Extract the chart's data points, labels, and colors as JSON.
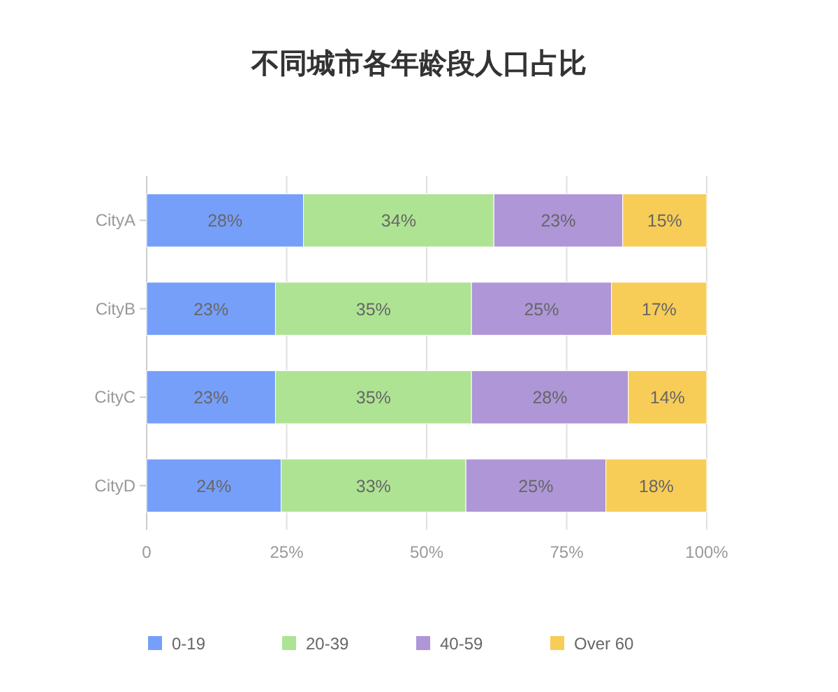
{
  "chart_data": {
    "type": "bar",
    "orientation": "horizontal",
    "stacked": true,
    "title": "不同城市各年龄段人口占比",
    "categories": [
      "CityA",
      "CityB",
      "CityC",
      "CityD"
    ],
    "series": [
      {
        "name": "0-19",
        "color": "#769ffa",
        "values": [
          28,
          23,
          23,
          24
        ],
        "value_labels": [
          "28%",
          "23%",
          "23%",
          "24%"
        ]
      },
      {
        "name": "20-39",
        "color": "#aee393",
        "values": [
          34,
          35,
          35,
          33
        ],
        "value_labels": [
          "34%",
          "35%",
          "35%",
          "33%"
        ]
      },
      {
        "name": "40-59",
        "color": "#ae96d7",
        "values": [
          23,
          25,
          28,
          25
        ],
        "value_labels": [
          "23%",
          "25%",
          "28%",
          "25%"
        ]
      },
      {
        "name": "Over 60",
        "color": "#f7cd58",
        "values": [
          15,
          17,
          14,
          18
        ],
        "value_labels": [
          "15%",
          "17%",
          "14%",
          "18%"
        ]
      }
    ],
    "xlim": [
      0,
      100
    ],
    "xticks": [
      0,
      {
        "value": 25,
        "label": "25%"
      },
      {
        "value": 50,
        "label": "50%"
      },
      {
        "value": 75,
        "label": "75%"
      },
      {
        "value": 100,
        "label": "100%"
      }
    ],
    "grid": "x",
    "legend": "bottom"
  }
}
